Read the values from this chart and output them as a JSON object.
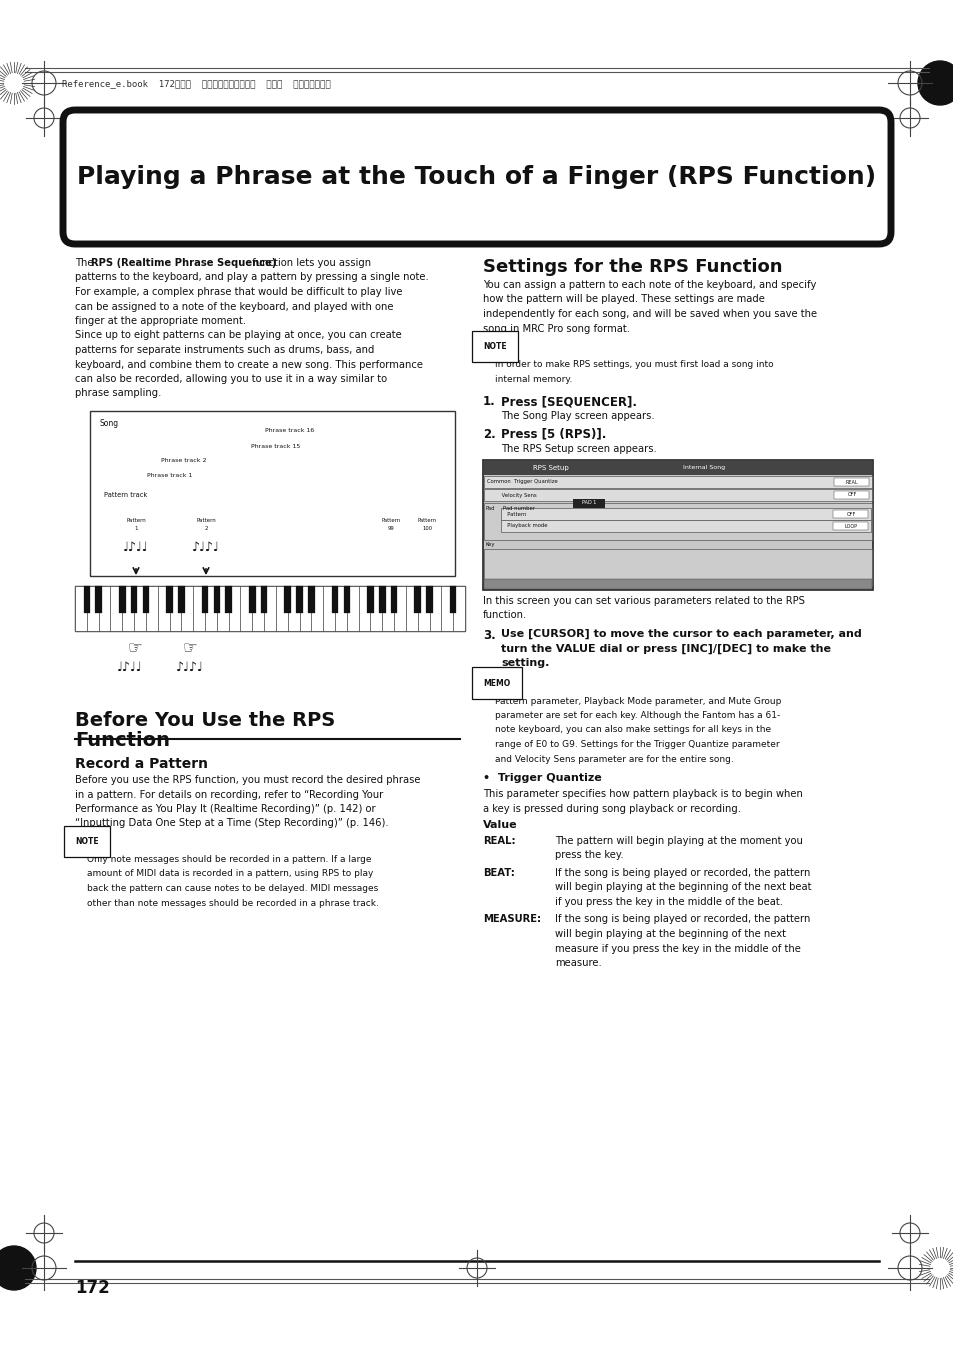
{
  "bg_color": "#ffffff",
  "page_width": 9.54,
  "page_height": 13.51,
  "title": "Playing a Phrase at the Touch of a Finger (RPS Function)",
  "header_text": "Reference_e.book  172ページ  ２００３年７月１４日  月曜日  午後３時２５分",
  "page_number": "172",
  "intro_bold": "RPS (Realtime Phrase Sequence)",
  "intro_pre": "The ",
  "intro_post": " function lets you assign",
  "intro_rest": "patterns to the keyboard, and play a pattern by pressing a single note.\nFor example, a complex phrase that would be difficult to play live\ncan be assigned to a note of the keyboard, and played with one\nfinger at the appropriate moment.\nSince up to eight patterns can be playing at once, you can create\npatterns for separate instruments such as drums, bass, and\nkeyboard, and combine them to create a new song. This performance\ncan also be recorded, allowing you to use it in a way similar to\nphrase sampling.",
  "section1_title": "Before You Use the RPS\nFunction",
  "section1_sub": "Record a Pattern",
  "section1_text_lines": [
    "Before you use the RPS function, you must record the desired phrase",
    "in a pattern. For details on recording, refer to “Recording Your",
    "Performance as You Play It (Realtime Recording)” (p. 142) or",
    "“Inputting Data One Step at a Time (Step Recording)” (p. 146)."
  ],
  "note1_text_lines": [
    "Only note messages should be recorded in a pattern. If a large",
    "amount of MIDI data is recorded in a pattern, using RPS to play",
    "back the pattern can cause notes to be delayed. MIDI messages",
    "other than note messages should be recorded in a phrase track."
  ],
  "section2_title": "Settings for the RPS Function",
  "section2_text_lines": [
    "You can assign a pattern to each note of the keyboard, and specify",
    "how the pattern will be played. These settings are made",
    "independently for each song, and will be saved when you save the",
    "song in MRC Pro song format."
  ],
  "note2_text_lines": [
    "In order to make RPS settings, you must first load a song into",
    "internal memory."
  ],
  "step1_bold": "Press [SEQUENCER].",
  "step1_text": "The Song Play screen appears.",
  "step2_bold": "Press [5 (RPS)].",
  "step2_text": "The RPS Setup screen appears.",
  "step3_bold_lines": [
    "Use [CURSOR] to move the cursor to each parameter, and",
    "turn the VALUE dial or press [INC]/[DEC] to make the",
    "setting."
  ],
  "memo_text_lines": [
    "Pattern parameter, Playback Mode parameter, and Mute Group",
    "parameter are set for each key. Although the Fantom has a 61-",
    "note keyboard, you can also make settings for all keys in the",
    "range of E0 to G9. Settings for the Trigger Quantize parameter",
    "and Velocity Sens parameter are for the entire song."
  ],
  "tq_title": "•  Trigger Quantize",
  "tq_text_lines": [
    "This parameter specifies how pattern playback is to begin when",
    "a key is pressed during song playback or recording."
  ],
  "value_title": "Value",
  "real_label": "REAL:",
  "real_text_lines": [
    "The pattern will begin playing at the moment you",
    "press the key."
  ],
  "beat_label": "BEAT:",
  "beat_text_lines": [
    "If the song is being played or recorded, the pattern",
    "will begin playing at the beginning of the next beat",
    "if you press the key in the middle of the beat."
  ],
  "measure_label": "MEASURE:",
  "measure_text_lines": [
    "If the song is being played or recorded, the pattern",
    "will begin playing at the beginning of the next",
    "measure if you press the key in the middle of the",
    "measure."
  ],
  "screen_caption1": "In this screen you can set various parameters related to the RPS",
  "screen_caption2": "function."
}
